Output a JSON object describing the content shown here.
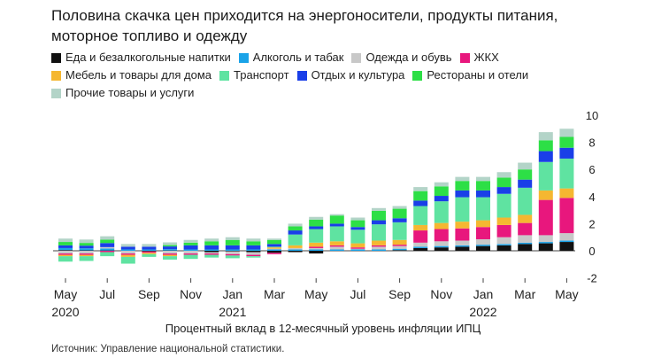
{
  "title_line1": "Половина скачка цен приходится на энергоносители, продукты питания,",
  "title_line2": "моторное топливо и одежду",
  "subtitle": "Процентный вклад в 12-месячный уровень инфляции ИПЦ",
  "source": "Источник: Управление национальной статистики.",
  "chart_data": {
    "type": "bar",
    "stacked": true,
    "ylim": [
      -2,
      10
    ],
    "y_ticks": [
      "10",
      "8",
      "6",
      "4",
      "2",
      "0",
      "-2"
    ],
    "x_tick_labels": [
      {
        "month": "May",
        "year": "2020",
        "index": 0
      },
      {
        "month": "Jul",
        "year": "",
        "index": 2
      },
      {
        "month": "Sep",
        "year": "",
        "index": 4
      },
      {
        "month": "Nov",
        "year": "",
        "index": 6
      },
      {
        "month": "Jan",
        "year": "2021",
        "index": 8
      },
      {
        "month": "Mar",
        "year": "",
        "index": 10
      },
      {
        "month": "May",
        "year": "",
        "index": 12
      },
      {
        "month": "Jul",
        "year": "",
        "index": 14
      },
      {
        "month": "Sep",
        "year": "",
        "index": 16
      },
      {
        "month": "Nov",
        "year": "",
        "index": 18
      },
      {
        "month": "Jan",
        "year": "2022",
        "index": 20
      },
      {
        "month": "Mar",
        "year": "",
        "index": 22
      },
      {
        "month": "May",
        "year": "",
        "index": 24
      }
    ],
    "categories": [
      "2020-05",
      "2020-06",
      "2020-07",
      "2020-08",
      "2020-09",
      "2020-10",
      "2020-11",
      "2020-12",
      "2021-01",
      "2021-02",
      "2021-03",
      "2021-04",
      "2021-05",
      "2021-06",
      "2021-07",
      "2021-08",
      "2021-09",
      "2021-10",
      "2021-11",
      "2021-12",
      "2022-01",
      "2022-02",
      "2022-03",
      "2022-04",
      "2022-05"
    ],
    "series": [
      {
        "name": "Еда и безалкогольные напитки",
        "color": "#111111",
        "values": [
          0.05,
          0.03,
          0.02,
          0.0,
          -0.05,
          0.02,
          0.0,
          -0.1,
          -0.05,
          -0.1,
          -0.15,
          -0.1,
          -0.2,
          0.0,
          0.0,
          0.0,
          0.05,
          0.2,
          0.25,
          0.3,
          0.35,
          0.4,
          0.5,
          0.55,
          0.65
        ]
      },
      {
        "name": "Алкоголь и табак",
        "color": "#1aa3e8",
        "values": [
          0.15,
          0.15,
          0.15,
          0.1,
          0.1,
          0.1,
          0.1,
          0.1,
          0.1,
          0.1,
          0.1,
          0.1,
          0.1,
          0.1,
          0.1,
          0.1,
          0.1,
          0.1,
          0.1,
          0.1,
          0.1,
          0.1,
          0.1,
          0.1,
          0.1
        ]
      },
      {
        "name": "Одежда и обувь",
        "color": "#c8c8c8",
        "values": [
          -0.2,
          -0.2,
          0.1,
          -0.2,
          0.0,
          -0.2,
          -0.2,
          -0.1,
          -0.2,
          -0.2,
          0.05,
          0.1,
          0.1,
          0.2,
          0.05,
          0.2,
          0.2,
          0.3,
          0.35,
          0.35,
          0.4,
          0.5,
          0.55,
          0.5,
          0.55
        ]
      },
      {
        "name": "ЖКХ",
        "color": "#e8177d",
        "values": [
          -0.1,
          -0.1,
          -0.1,
          -0.1,
          -0.1,
          -0.1,
          -0.1,
          -0.1,
          -0.1,
          -0.1,
          -0.1,
          0.0,
          0.1,
          0.1,
          0.1,
          0.1,
          0.1,
          0.9,
          0.9,
          0.9,
          0.9,
          0.9,
          0.9,
          2.6,
          2.6
        ]
      },
      {
        "name": "Мебель и товары для дома",
        "color": "#f5b731",
        "values": [
          -0.1,
          -0.1,
          0.0,
          -0.15,
          -0.1,
          -0.1,
          0.0,
          0.0,
          0.0,
          0.0,
          0.1,
          0.2,
          0.3,
          0.3,
          0.3,
          0.35,
          0.35,
          0.4,
          0.45,
          0.5,
          0.5,
          0.55,
          0.6,
          0.7,
          0.7
        ]
      },
      {
        "name": "Транспорт",
        "color": "#5fe3a1",
        "values": [
          -0.4,
          -0.35,
          -0.3,
          -0.5,
          -0.2,
          -0.25,
          -0.3,
          -0.2,
          -0.2,
          -0.1,
          0.05,
          0.8,
          1.0,
          1.1,
          1.0,
          1.2,
          1.3,
          1.4,
          1.6,
          1.8,
          1.7,
          1.75,
          2.0,
          2.1,
          2.2
        ]
      },
      {
        "name": "Отдых и культура",
        "color": "#1a3fe8",
        "values": [
          0.2,
          0.2,
          0.3,
          0.2,
          0.2,
          0.2,
          0.3,
          0.3,
          0.3,
          0.3,
          0.2,
          0.3,
          0.2,
          0.2,
          0.2,
          0.3,
          0.3,
          0.4,
          0.4,
          0.5,
          0.5,
          0.5,
          0.6,
          0.8,
          0.8
        ]
      },
      {
        "name": "Рестораны и отели",
        "color": "#2ddf46",
        "values": [
          0.25,
          0.2,
          0.25,
          0.0,
          0.0,
          0.1,
          0.2,
          0.3,
          0.4,
          0.3,
          0.3,
          0.3,
          0.5,
          0.6,
          0.5,
          0.7,
          0.7,
          0.7,
          0.7,
          0.7,
          0.7,
          0.7,
          0.75,
          0.8,
          0.8
        ]
      },
      {
        "name": "Прочие товары и услуги",
        "color": "#b3d4c8",
        "values": [
          0.25,
          0.25,
          0.25,
          0.2,
          0.2,
          0.2,
          0.2,
          0.2,
          0.2,
          0.2,
          0.1,
          0.2,
          0.2,
          0.1,
          0.2,
          0.2,
          0.2,
          0.3,
          0.3,
          0.3,
          0.3,
          0.4,
          0.5,
          0.6,
          0.6
        ]
      }
    ]
  }
}
